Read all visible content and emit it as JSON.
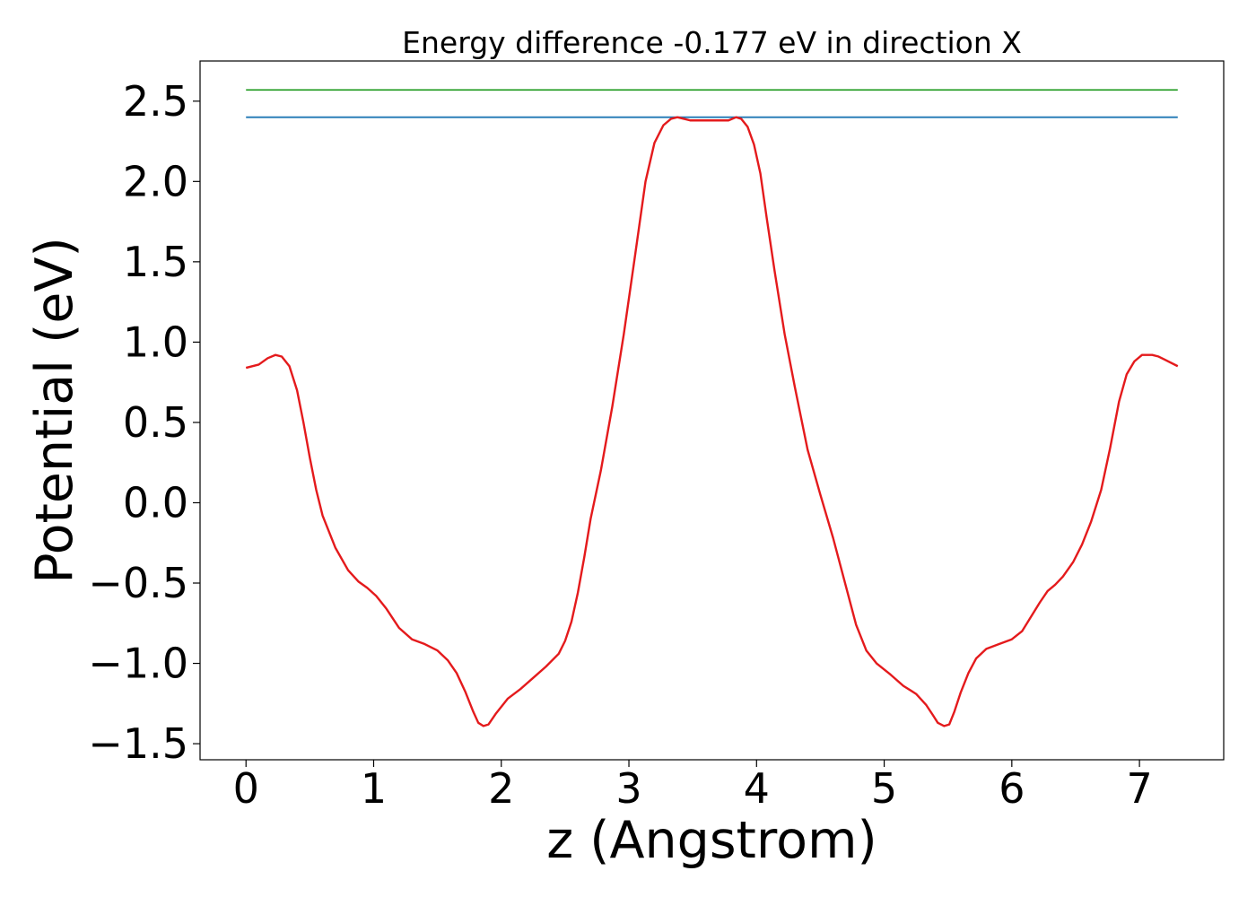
{
  "chart_data": {
    "type": "line",
    "title": "Energy difference -0.177 eV in direction X",
    "xlabel": "z (Angstrom)",
    "ylabel": "Potential (eV)",
    "xlim": [
      -0.36,
      7.66
    ],
    "ylim": [
      -1.6,
      2.75
    ],
    "xticks": [
      0,
      1,
      2,
      3,
      4,
      5,
      6,
      7
    ],
    "yticks": [
      -1.5,
      -1.0,
      -0.5,
      0.0,
      0.5,
      1.0,
      1.5,
      2.0,
      2.5
    ],
    "ytick_labels": [
      "−1.5",
      "−1.0",
      "−0.5",
      "0.0",
      "0.5",
      "1.0",
      "1.5",
      "2.0",
      "2.5"
    ],
    "grid": false,
    "series": [
      {
        "color": "#2ca02c",
        "x": [
          0,
          7.3
        ],
        "y": [
          2.57,
          2.57
        ]
      },
      {
        "color": "#1f77b4",
        "x": [
          0,
          7.3
        ],
        "y": [
          2.4,
          2.4
        ]
      },
      {
        "color": "#e41a1c",
        "x": [
          0.0,
          0.1,
          0.17,
          0.23,
          0.28,
          0.34,
          0.4,
          0.45,
          0.5,
          0.55,
          0.6,
          0.7,
          0.8,
          0.88,
          0.95,
          1.02,
          1.1,
          1.2,
          1.3,
          1.4,
          1.5,
          1.58,
          1.65,
          1.72,
          1.78,
          1.82,
          1.86,
          1.9,
          1.96,
          2.05,
          2.15,
          2.25,
          2.35,
          2.45,
          2.5,
          2.55,
          2.6,
          2.65,
          2.7,
          2.78,
          2.87,
          2.96,
          3.05,
          3.13,
          3.2,
          3.27,
          3.33,
          3.38,
          3.43,
          3.48,
          3.52,
          3.6,
          3.7,
          3.78,
          3.84,
          3.88,
          3.93,
          3.98,
          4.03,
          4.08,
          4.14,
          4.22,
          4.3,
          4.4,
          4.5,
          4.6,
          4.7,
          4.78,
          4.86,
          4.94,
          5.05,
          5.15,
          5.25,
          5.33,
          5.38,
          5.42,
          5.47,
          5.51,
          5.55,
          5.6,
          5.66,
          5.72,
          5.8,
          5.9,
          6.0,
          6.08,
          6.15,
          6.22,
          6.28,
          6.34,
          6.4,
          6.48,
          6.55,
          6.62,
          6.7,
          6.77,
          6.84,
          6.9,
          6.96,
          7.02,
          7.06,
          7.1,
          7.15,
          7.2,
          7.3
        ],
        "y": [
          0.84,
          0.86,
          0.9,
          0.92,
          0.91,
          0.85,
          0.7,
          0.5,
          0.28,
          0.08,
          -0.08,
          -0.28,
          -0.42,
          -0.49,
          -0.53,
          -0.58,
          -0.66,
          -0.78,
          -0.85,
          -0.88,
          -0.92,
          -0.98,
          -1.06,
          -1.18,
          -1.3,
          -1.37,
          -1.39,
          -1.38,
          -1.31,
          -1.22,
          -1.16,
          -1.09,
          -1.02,
          -0.94,
          -0.86,
          -0.74,
          -0.56,
          -0.34,
          -0.1,
          0.2,
          0.6,
          1.05,
          1.55,
          2.0,
          2.24,
          2.35,
          2.39,
          2.4,
          2.39,
          2.38,
          2.38,
          2.38,
          2.38,
          2.38,
          2.4,
          2.39,
          2.34,
          2.23,
          2.05,
          1.77,
          1.45,
          1.05,
          0.72,
          0.33,
          0.05,
          -0.22,
          -0.52,
          -0.76,
          -0.92,
          -1.0,
          -1.07,
          -1.14,
          -1.19,
          -1.26,
          -1.32,
          -1.37,
          -1.39,
          -1.38,
          -1.3,
          -1.18,
          -1.06,
          -0.97,
          -0.91,
          -0.88,
          -0.85,
          -0.8,
          -0.71,
          -0.62,
          -0.55,
          -0.51,
          -0.46,
          -0.37,
          -0.26,
          -0.12,
          0.08,
          0.34,
          0.63,
          0.8,
          0.88,
          0.92,
          0.92,
          0.92,
          0.91,
          0.89,
          0.85
        ]
      }
    ]
  }
}
